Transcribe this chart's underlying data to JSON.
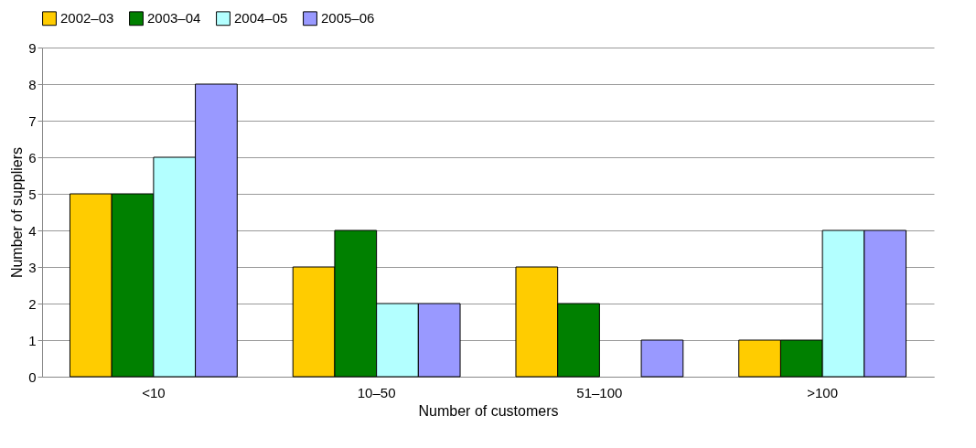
{
  "chart_data": {
    "type": "bar",
    "xlabel": "Number of customers",
    "ylabel": "Number of suppliers",
    "categories": [
      "<10",
      "10–50",
      "51–100",
      ">100"
    ],
    "series": [
      {
        "name": "2002–03",
        "color": "#ffcc00",
        "values": [
          5,
          3,
          3,
          1
        ]
      },
      {
        "name": "2003–04",
        "color": "#008000",
        "values": [
          5,
          4,
          2,
          1
        ]
      },
      {
        "name": "2004–05",
        "color": "#b3ffff",
        "values": [
          6,
          2,
          null,
          4
        ]
      },
      {
        "name": "2005–06",
        "color": "#9999ff",
        "values": [
          8,
          2,
          1,
          4
        ]
      }
    ],
    "ylim": [
      0,
      9
    ],
    "yticks": [
      0,
      1,
      2,
      3,
      4,
      5,
      6,
      7,
      8,
      9
    ],
    "grid": "y",
    "legend": "top left"
  }
}
